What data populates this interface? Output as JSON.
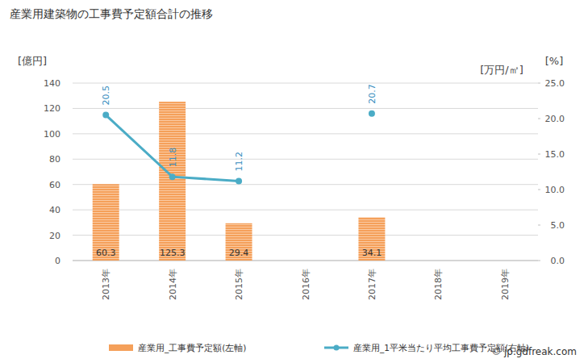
{
  "chart_data": {
    "type": "bar",
    "title": "産業用建築物の工事費予定額合計の推移",
    "y_label": "[億円]",
    "y2_label": "[万円/㎡]",
    "annotations": [
      "[%]",
      "© jp.gdfreak.com"
    ],
    "categories": [
      "2013年",
      "2014年",
      "2015年",
      "2016年",
      "2017年",
      "2018年",
      "2019年"
    ],
    "series": [
      {
        "name": "産業用_工事費予定額(左軸)",
        "type": "bar",
        "color": "#f5a05a",
        "values": [
          60.3,
          125.3,
          29.4,
          null,
          34.1,
          null,
          null
        ]
      },
      {
        "name": "産業用_1平米当たり平均工事費予定額(右軸)",
        "type": "line",
        "axis": "y2",
        "color": "#4bacc6",
        "marker": "circle",
        "line_style": "solid",
        "values": [
          20.5,
          11.8,
          11.2,
          null,
          20.7,
          null,
          null
        ]
      }
    ],
    "ylim": [
      0,
      140
    ],
    "yticks": [
      0,
      20,
      40,
      60,
      80,
      100,
      120,
      140
    ],
    "y2lim": [
      0,
      25
    ],
    "y2ticks": [
      {
        "value": 0,
        "label": "0.0"
      },
      {
        "value": 5,
        "label": "5.0"
      },
      {
        "value": 10,
        "label": "10.0"
      },
      {
        "value": 15,
        "label": "15.0"
      },
      {
        "value": 20,
        "label": "20.0"
      },
      {
        "value": 25,
        "label": "25.0"
      }
    ],
    "grid": true,
    "data_labels": true,
    "legend": "bottom"
  }
}
